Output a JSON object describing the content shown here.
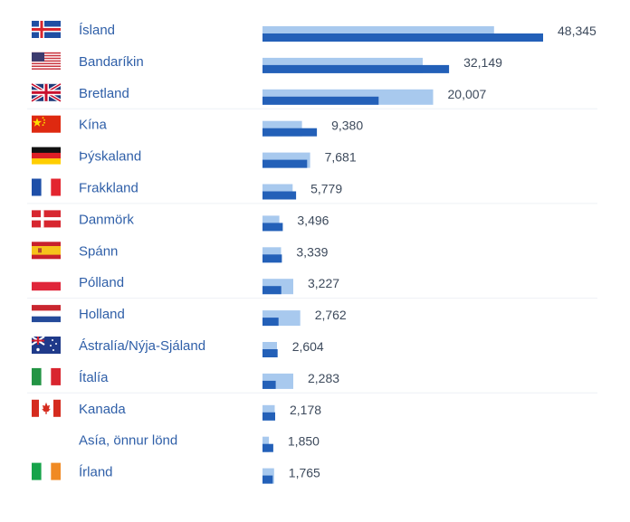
{
  "chart_data": {
    "type": "bar",
    "orientation": "horizontal",
    "grouped_overlay": true,
    "grid": false,
    "colors": {
      "light": "#a8c9ee",
      "dark": "#2360b8",
      "text": "#2f5fa8",
      "value_text": "#3d4a5c",
      "divider": "#eef1f5"
    },
    "categories": [
      "Ísland",
      "Bandaríkin",
      "Bretland",
      "Kína",
      "Þýskaland",
      "Frakkland",
      "Danmörk",
      "Spánn",
      "Pólland",
      "Holland",
      "Ástralía/Nýja-Sjáland",
      "Ítalía",
      "Kanada",
      "Asía, önnur lönd",
      "Írland"
    ],
    "flags": [
      "iceland-flag",
      "usa-flag",
      "uk-flag",
      "china-flag",
      "germany-flag",
      "france-flag",
      "denmark-flag",
      "spain-flag",
      "poland-flag",
      "netherlands-flag",
      "australia-flag",
      "italy-flag",
      "canada-flag",
      "",
      "ireland-flag"
    ],
    "value_labels": [
      "48,345",
      "32,149",
      "20,007",
      "9,380",
      "7,681",
      "5,779",
      "3,496",
      "3,339",
      "3,227",
      "2,762",
      "2,604",
      "2,283",
      "2,178",
      "1,850",
      "1,765"
    ],
    "series": [
      {
        "values": [
          48345,
          32149,
          20007,
          9380,
          7681,
          5779,
          3496,
          3339,
          3227,
          2762,
          2604,
          2283,
          2178,
          1850,
          1765
        ]
      },
      {
        "values": [
          39900,
          27600,
          29400,
          6800,
          8200,
          5200,
          2900,
          3200,
          5300,
          6500,
          2500,
          5300,
          2100,
          1100,
          2000
        ]
      }
    ]
  }
}
